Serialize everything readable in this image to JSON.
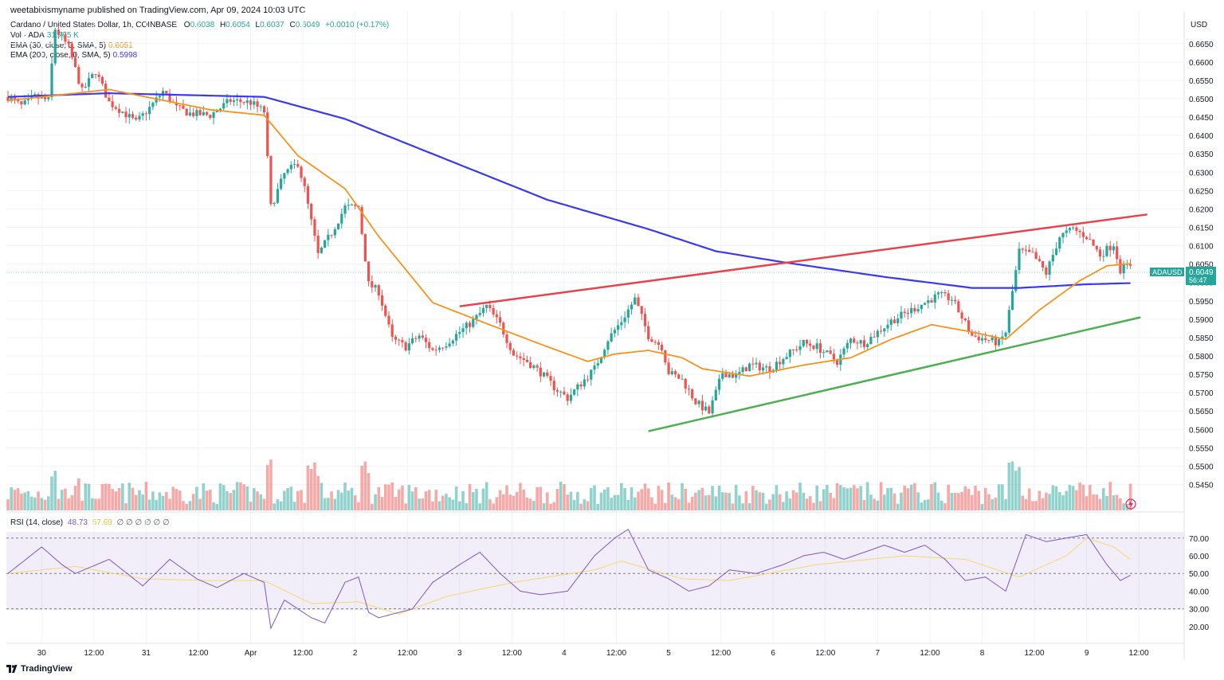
{
  "header": {
    "published_line": "weetabixismyname published on TradingView.com, Apr 09, 2024 10:03 UTC"
  },
  "legend": {
    "symbol": "Cardano / United States Dollar, 1h, COINBASE",
    "o_label": "O",
    "o_value": "0.6038",
    "h_label": "H",
    "h_value": "0.6054",
    "l_label": "L",
    "l_value": "0.6037",
    "c_label": "C",
    "c_value": "0.6049",
    "change": "+0.0010 (+0.17%)",
    "vol_label": "Vol · ADA",
    "vol_value": "31.795 K",
    "ema30_label": "EMA (30, close, 0, SMA, 5)",
    "ema30_value": "0.6051",
    "ema200_label": "EMA (200, close, 0, SMA, 5)",
    "ema200_value": "0.5998",
    "rsi_label": "RSI (14, close)",
    "rsi_value": "48.73",
    "rsi_ma_value": "57.69",
    "rsi_empty": "∅ ∅ ∅ ∅ ∅ ∅"
  },
  "price_axis": {
    "currency": "USD",
    "ticks": [
      "0.6650",
      "0.6600",
      "0.6550",
      "0.6500",
      "0.6450",
      "0.6400",
      "0.6350",
      "0.6300",
      "0.6250",
      "0.6200",
      "0.6150",
      "0.6100",
      "0.6050",
      "0.6000",
      "0.5950",
      "0.5900",
      "0.5850",
      "0.5800",
      "0.5750",
      "0.5700",
      "0.5650",
      "0.5600",
      "0.5550",
      "0.5500",
      "0.5450"
    ]
  },
  "rsi_axis": {
    "ticks": [
      "70.00",
      "60.00",
      "50.00",
      "40.00",
      "30.00",
      "20.00"
    ]
  },
  "time_axis": {
    "labels": [
      "30",
      "12:00",
      "31",
      "12:00",
      "Apr",
      "12:00",
      "2",
      "12:00",
      "3",
      "12:00",
      "4",
      "12:00",
      "5",
      "12:00",
      "6",
      "12:00",
      "7",
      "12:00",
      "8",
      "12:00",
      "9",
      "12:00"
    ]
  },
  "last_price": {
    "symbol": "ADAUSD",
    "price": "0.6049",
    "countdown": "56:47"
  },
  "colors": {
    "up": "#26a69a",
    "down": "#ef5350",
    "ema30": "#f7931a",
    "ema200": "#3a3aeb",
    "resistance": "#e8434d",
    "support": "#4caf50",
    "rsi": "#7e57c2",
    "rsi_ma": "#f5d76e"
  },
  "footer": {
    "brand": "TradingView"
  },
  "chart_data": {
    "type": "candlestick",
    "title": "Cardano / United States Dollar, 1h, COINBASE",
    "y_range": [
      0.5425,
      0.6695
    ],
    "anchor_closes": [
      [
        0,
        0.6505
      ],
      [
        4,
        0.648
      ],
      [
        8,
        0.6505
      ],
      [
        12,
        0.6495
      ],
      [
        14,
        0.669
      ],
      [
        18,
        0.664
      ],
      [
        22,
        0.652
      ],
      [
        26,
        0.6575
      ],
      [
        30,
        0.649
      ],
      [
        34,
        0.6465
      ],
      [
        38,
        0.6435
      ],
      [
        42,
        0.6475
      ],
      [
        46,
        0.652
      ],
      [
        50,
        0.6475
      ],
      [
        54,
        0.646
      ],
      [
        60,
        0.6455
      ],
      [
        66,
        0.6495
      ],
      [
        72,
        0.649
      ],
      [
        76,
        0.6465
      ],
      [
        78,
        0.6205
      ],
      [
        82,
        0.6295
      ],
      [
        86,
        0.6325
      ],
      [
        88,
        0.6255
      ],
      [
        92,
        0.6075
      ],
      [
        96,
        0.6135
      ],
      [
        100,
        0.6205
      ],
      [
        104,
        0.6205
      ],
      [
        107,
        0.5995
      ],
      [
        110,
        0.5975
      ],
      [
        114,
        0.5845
      ],
      [
        118,
        0.5825
      ],
      [
        122,
        0.5855
      ],
      [
        126,
        0.5815
      ],
      [
        130,
        0.5835
      ],
      [
        134,
        0.5865
      ],
      [
        138,
        0.5895
      ],
      [
        142,
        0.5935
      ],
      [
        146,
        0.5885
      ],
      [
        150,
        0.5805
      ],
      [
        154,
        0.5785
      ],
      [
        158,
        0.5755
      ],
      [
        162,
        0.5715
      ],
      [
        166,
        0.5685
      ],
      [
        170,
        0.5725
      ],
      [
        174,
        0.5765
      ],
      [
        178,
        0.5845
      ],
      [
        182,
        0.5895
      ],
      [
        186,
        0.5955
      ],
      [
        190,
        0.5855
      ],
      [
        194,
        0.5825
      ],
      [
        196,
        0.5755
      ],
      [
        200,
        0.5735
      ],
      [
        204,
        0.5675
      ],
      [
        208,
        0.5645
      ],
      [
        212,
        0.5755
      ],
      [
        216,
        0.5745
      ],
      [
        220,
        0.5775
      ],
      [
        226,
        0.5765
      ],
      [
        230,
        0.5795
      ],
      [
        236,
        0.5835
      ],
      [
        240,
        0.5825
      ],
      [
        246,
        0.5785
      ],
      [
        250,
        0.5845
      ],
      [
        254,
        0.5835
      ],
      [
        258,
        0.5865
      ],
      [
        262,
        0.5895
      ],
      [
        268,
        0.5925
      ],
      [
        272,
        0.5945
      ],
      [
        276,
        0.5965
      ],
      [
        280,
        0.5955
      ],
      [
        283,
        0.5905
      ],
      [
        286,
        0.5855
      ],
      [
        290,
        0.5845
      ],
      [
        294,
        0.5835
      ],
      [
        296,
        0.5865
      ],
      [
        300,
        0.6085
      ],
      [
        304,
        0.6075
      ],
      [
        308,
        0.6025
      ],
      [
        312,
        0.6125
      ],
      [
        316,
        0.6145
      ],
      [
        320,
        0.6125
      ],
      [
        324,
        0.6075
      ],
      [
        328,
        0.6105
      ],
      [
        330,
        0.6035
      ],
      [
        333,
        0.6049
      ]
    ],
    "ema30_anchors": [
      [
        0,
        0.6495
      ],
      [
        30,
        0.6525
      ],
      [
        60,
        0.647
      ],
      [
        76,
        0.6455
      ],
      [
        86,
        0.6345
      ],
      [
        100,
        0.6255
      ],
      [
        110,
        0.6125
      ],
      [
        126,
        0.5945
      ],
      [
        140,
        0.5895
      ],
      [
        160,
        0.5825
      ],
      [
        172,
        0.5785
      ],
      [
        180,
        0.5805
      ],
      [
        190,
        0.5815
      ],
      [
        200,
        0.5795
      ],
      [
        206,
        0.5765
      ],
      [
        220,
        0.5745
      ],
      [
        236,
        0.5775
      ],
      [
        250,
        0.5795
      ],
      [
        262,
        0.5845
      ],
      [
        274,
        0.5885
      ],
      [
        286,
        0.5865
      ],
      [
        296,
        0.5845
      ],
      [
        306,
        0.5925
      ],
      [
        318,
        0.6005
      ],
      [
        326,
        0.6045
      ],
      [
        333,
        0.6051
      ]
    ],
    "ema200_anchors": [
      [
        0,
        0.6505
      ],
      [
        30,
        0.6515
      ],
      [
        76,
        0.6505
      ],
      [
        100,
        0.6445
      ],
      [
        130,
        0.6335
      ],
      [
        160,
        0.6225
      ],
      [
        190,
        0.6145
      ],
      [
        210,
        0.6085
      ],
      [
        230,
        0.6055
      ],
      [
        260,
        0.6015
      ],
      [
        286,
        0.5985
      ],
      [
        300,
        0.5985
      ],
      [
        320,
        0.5995
      ],
      [
        333,
        0.5998
      ]
    ],
    "resistance_line": [
      [
        0.5935,
        134
      ],
      [
        0.6185,
        338
      ]
    ],
    "support_line": [
      [
        0.5595,
        190
      ],
      [
        0.5905,
        336
      ]
    ],
    "rsi_anchors": [
      [
        0,
        50
      ],
      [
        10,
        65
      ],
      [
        16,
        55
      ],
      [
        20,
        50
      ],
      [
        30,
        58
      ],
      [
        40,
        43
      ],
      [
        48,
        58
      ],
      [
        56,
        47
      ],
      [
        62,
        42
      ],
      [
        70,
        50
      ],
      [
        76,
        45
      ],
      [
        78,
        19
      ],
      [
        82,
        35
      ],
      [
        86,
        30
      ],
      [
        90,
        25
      ],
      [
        94,
        22
      ],
      [
        100,
        45
      ],
      [
        104,
        48
      ],
      [
        107,
        28
      ],
      [
        110,
        25
      ],
      [
        114,
        27
      ],
      [
        120,
        30
      ],
      [
        126,
        45
      ],
      [
        134,
        55
      ],
      [
        140,
        62
      ],
      [
        146,
        50
      ],
      [
        152,
        40
      ],
      [
        158,
        38
      ],
      [
        166,
        40
      ],
      [
        174,
        60
      ],
      [
        180,
        70
      ],
      [
        184,
        75
      ],
      [
        190,
        52
      ],
      [
        196,
        47
      ],
      [
        202,
        40
      ],
      [
        208,
        43
      ],
      [
        214,
        52
      ],
      [
        222,
        50
      ],
      [
        230,
        55
      ],
      [
        236,
        60
      ],
      [
        242,
        62
      ],
      [
        248,
        58
      ],
      [
        254,
        62
      ],
      [
        260,
        66
      ],
      [
        266,
        62
      ],
      [
        272,
        66
      ],
      [
        278,
        58
      ],
      [
        284,
        46
      ],
      [
        290,
        48
      ],
      [
        296,
        40
      ],
      [
        302,
        72
      ],
      [
        308,
        68
      ],
      [
        314,
        70
      ],
      [
        320,
        72
      ],
      [
        326,
        55
      ],
      [
        330,
        46
      ],
      [
        333,
        49
      ]
    ],
    "rsi_ma_anchors": [
      [
        0,
        50
      ],
      [
        20,
        54
      ],
      [
        40,
        47
      ],
      [
        60,
        46
      ],
      [
        76,
        46
      ],
      [
        90,
        33
      ],
      [
        104,
        34
      ],
      [
        116,
        27
      ],
      [
        130,
        37
      ],
      [
        150,
        45
      ],
      [
        174,
        52
      ],
      [
        182,
        57
      ],
      [
        200,
        47
      ],
      [
        214,
        46
      ],
      [
        240,
        55
      ],
      [
        266,
        60
      ],
      [
        284,
        58
      ],
      [
        300,
        48
      ],
      [
        314,
        60
      ],
      [
        320,
        70
      ],
      [
        328,
        65
      ],
      [
        333,
        58
      ]
    ],
    "rsi_bands": [
      70,
      50,
      30
    ],
    "rsi_range": [
      15,
      78
    ]
  }
}
